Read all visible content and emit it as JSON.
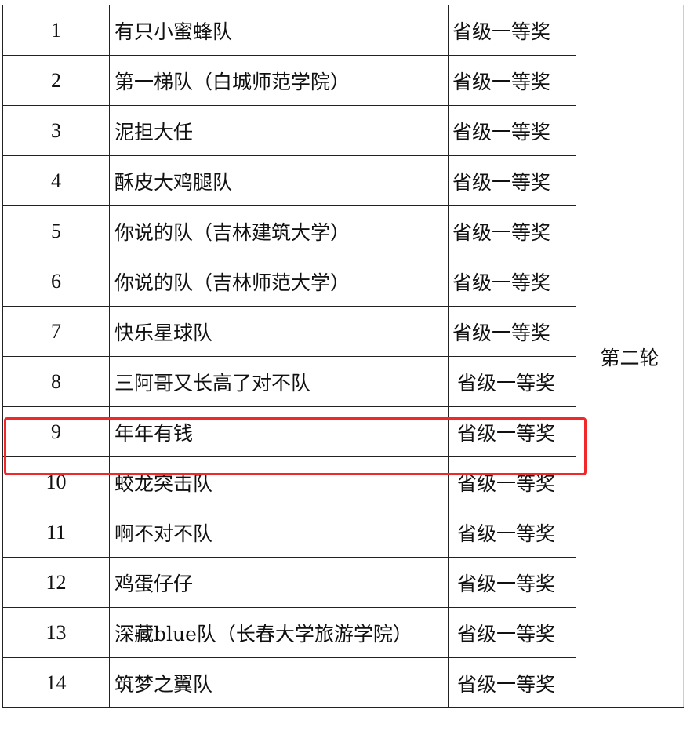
{
  "rows": [
    {
      "no": "1",
      "name": "有只小蜜蜂队",
      "award": "省级一等奖"
    },
    {
      "no": "2",
      "name": "第一梯队（白城师范学院）",
      "award": "省级一等奖"
    },
    {
      "no": "3",
      "name": "泥担大任",
      "award": "省级一等奖"
    },
    {
      "no": "4",
      "name": "酥皮大鸡腿队",
      "award": "省级一等奖"
    },
    {
      "no": "5",
      "name": "你说的队（吉林建筑大学）",
      "award": "省级一等奖"
    },
    {
      "no": "6",
      "name": "你说的队（吉林师范大学）",
      "award": "省级一等奖"
    },
    {
      "no": "7",
      "name": "快乐星球队",
      "award": "省级一等奖"
    },
    {
      "no": "8",
      "name": "三阿哥又长高了对不队",
      "award": "省级一等奖"
    },
    {
      "no": "9",
      "name": "年年有钱",
      "award": "省级一等奖"
    },
    {
      "no": "10",
      "name": "蛟龙突击队",
      "award": "省级一等奖"
    },
    {
      "no": "11",
      "name": "啊不对不队",
      "award": "省级一等奖"
    },
    {
      "no": "12",
      "name": "鸡蛋仔仔",
      "award": "省级一等奖"
    },
    {
      "no": "13",
      "name": "深藏blue队（长春大学旅游学院）",
      "award": "省级一等奖"
    },
    {
      "no": "14",
      "name": "筑梦之翼队",
      "award": "省级一等奖"
    }
  ],
  "round": "第二轮",
  "highlighted_row": "9",
  "highlight_color": "#f0282a"
}
